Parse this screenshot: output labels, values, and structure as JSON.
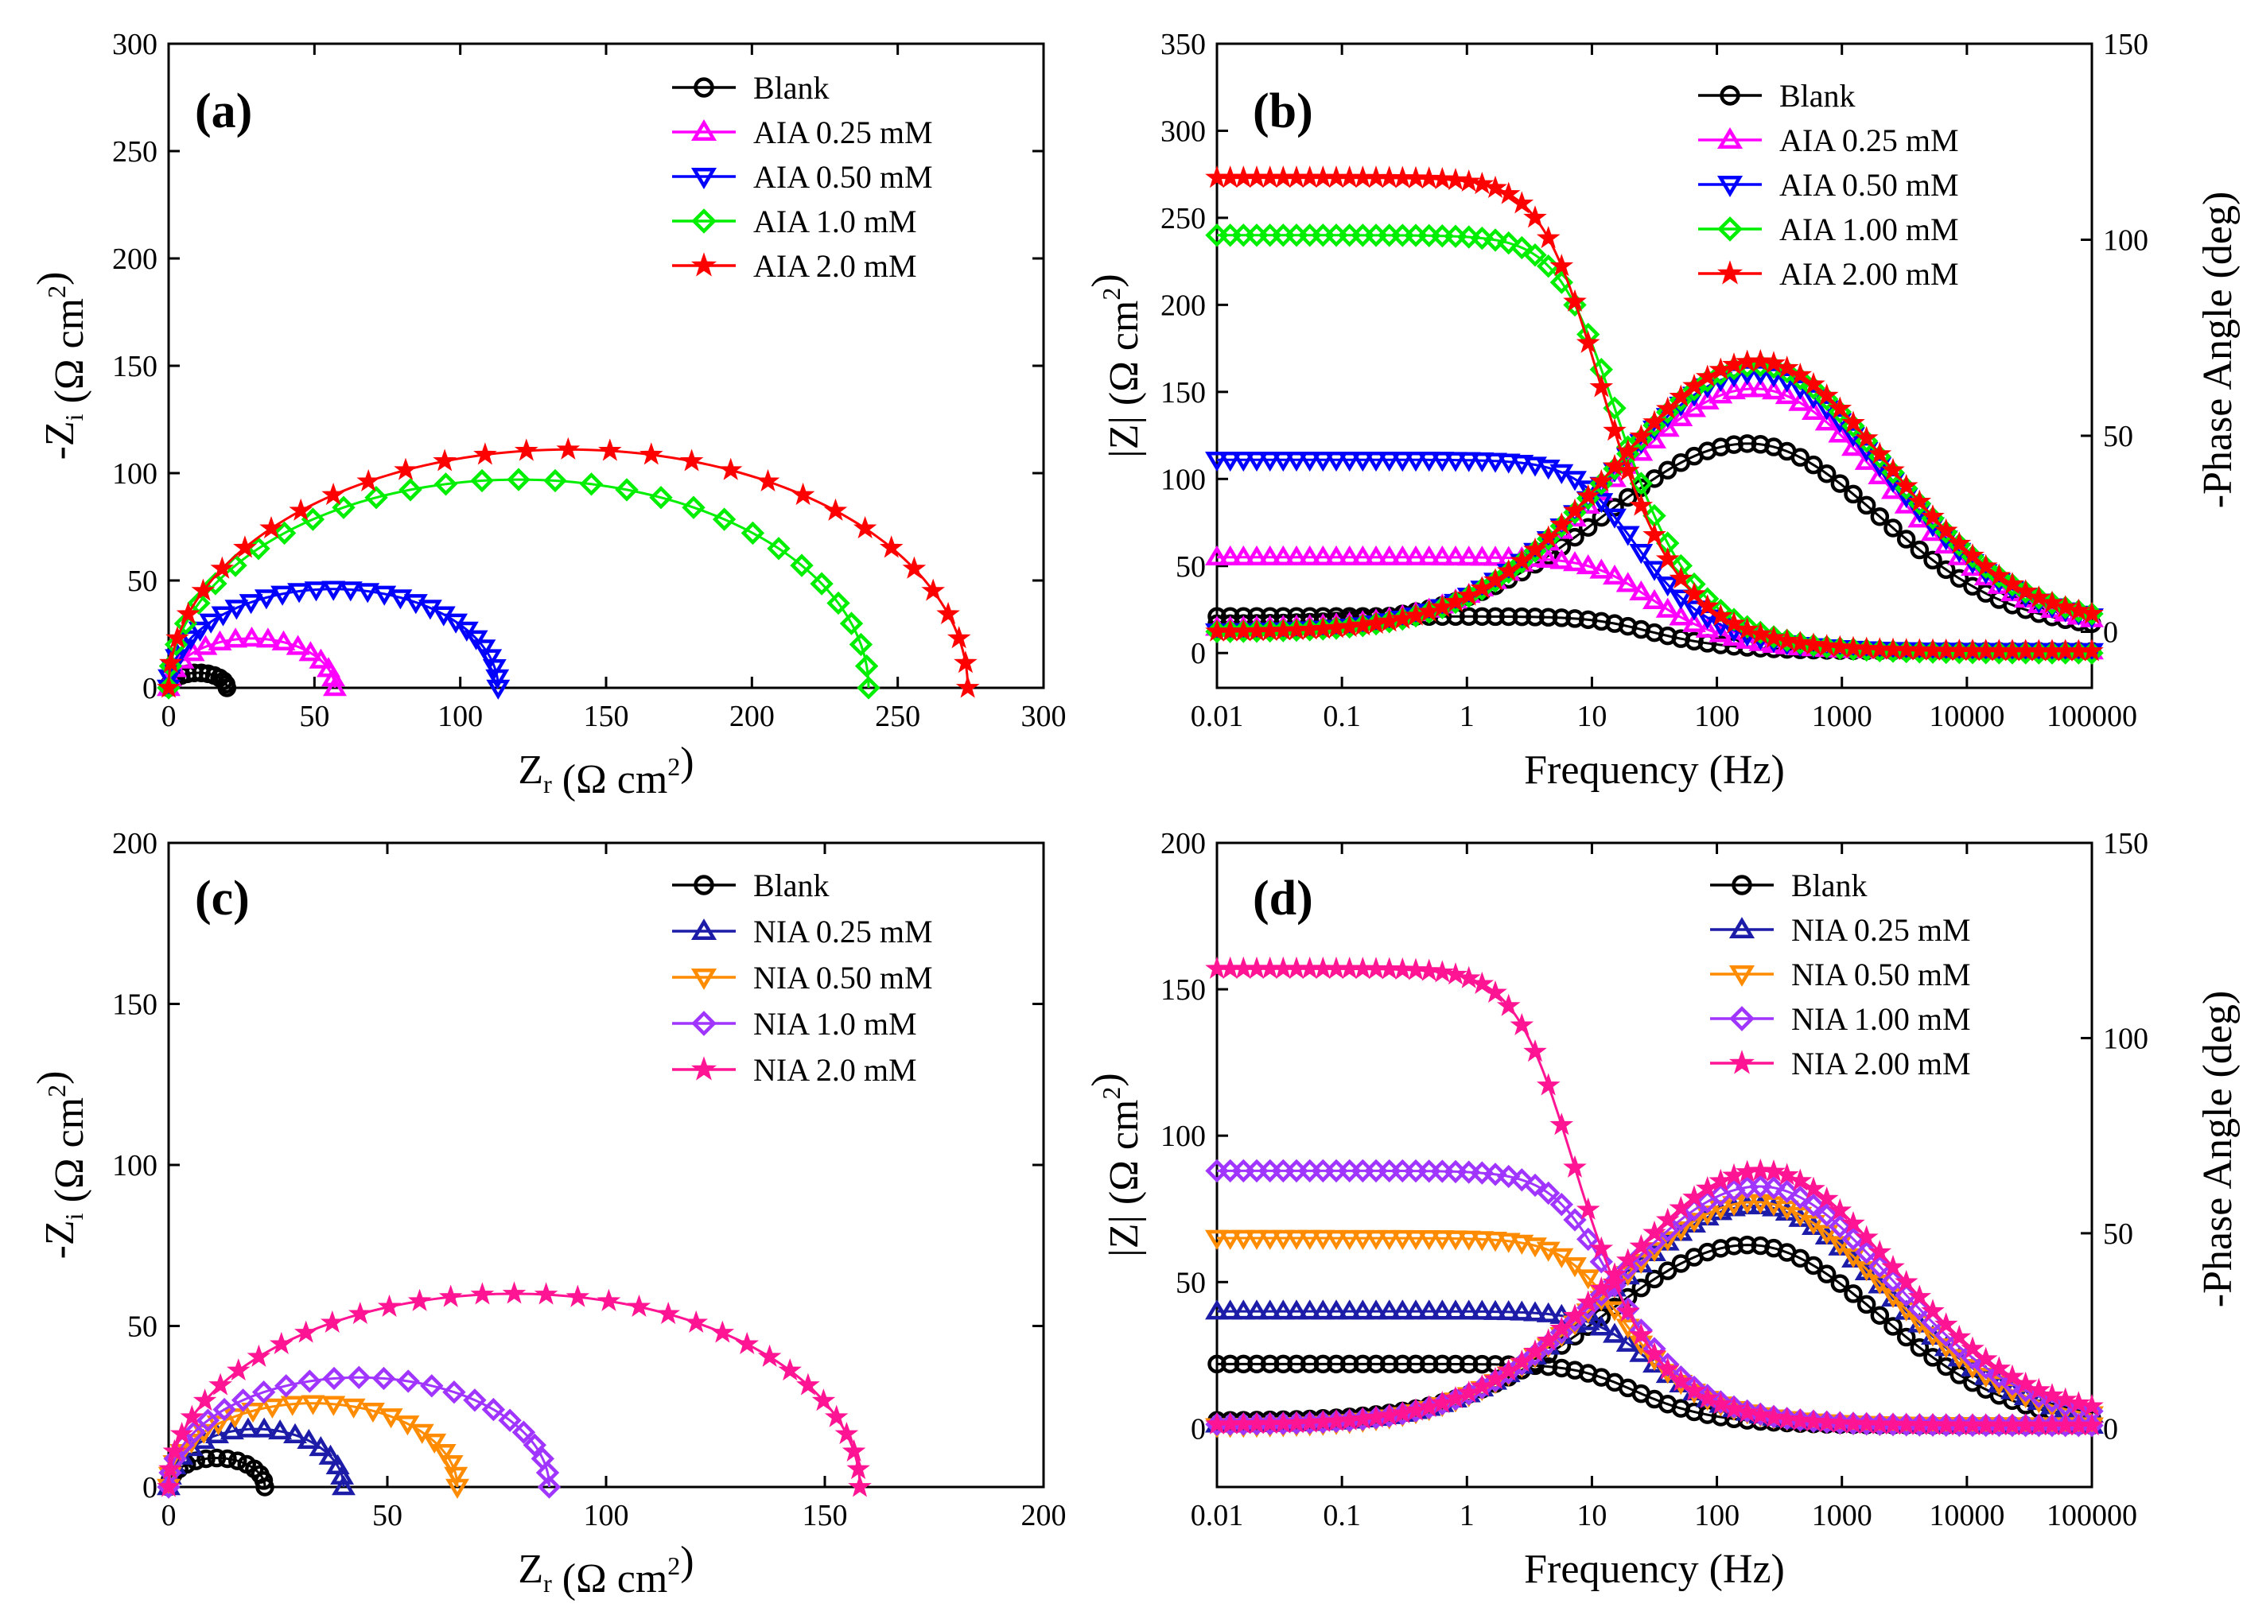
{
  "figure": {
    "panel_labels": [
      "(a)",
      "(b)",
      "(c)",
      "(d)"
    ]
  },
  "chart_data": [
    {
      "panel": "(a)",
      "type": "scatter",
      "style": "nyquist",
      "xlabel": "Z_r (Ω cm^2)",
      "ylabel": "-Z_i (Ω cm^2)",
      "xlim": [
        0,
        300
      ],
      "ylim": [
        0,
        300
      ],
      "xticks": [
        0,
        50,
        100,
        150,
        200,
        250,
        300
      ],
      "yticks": [
        0,
        50,
        100,
        150,
        200,
        250,
        300
      ],
      "legend_position": "top-right",
      "series": [
        {
          "name": "Blank",
          "marker": "circle",
          "color": "#000000",
          "rs": 0,
          "rct": 20,
          "peak": 7,
          "points": 13
        },
        {
          "name": "AIA 0.25 mM",
          "marker": "triangle-up",
          "color": "#ff00ff",
          "rs": 0,
          "rct": 57,
          "peak": 23,
          "points": 16
        },
        {
          "name": "AIA 0.50 mM",
          "marker": "triangle-down",
          "color": "#0000ff",
          "rs": 0,
          "rct": 113,
          "peak": 46,
          "points": 30
        },
        {
          "name": "AIA 1.0 mM",
          "marker": "diamond",
          "color": "#00ee00",
          "rs": 0,
          "rct": 240,
          "peak": 97,
          "points": 30
        },
        {
          "name": "AIA 2.0 mM",
          "marker": "star",
          "color": "#ff0000",
          "rs": 0,
          "rct": 274,
          "peak": 111,
          "points": 30
        }
      ]
    },
    {
      "panel": "(b)",
      "type": "scatter",
      "style": "bode",
      "xlabel": "Frequency (Hz)",
      "ylabel": "|Z| (Ω cm^2)",
      "y2label": "-Phase Angle (deg)",
      "xlim": [
        0.01,
        100000
      ],
      "ylim": [
        -20,
        350
      ],
      "y2lim": [
        -14.3,
        150
      ],
      "xticks": [
        "0.01",
        "0.1",
        "1",
        "10",
        "100",
        "1000",
        "10000",
        "100000"
      ],
      "yticks": [
        0,
        50,
        100,
        150,
        200,
        250,
        300,
        350
      ],
      "y2ticks": [
        0,
        50,
        100,
        150
      ],
      "legend_position": "top-right",
      "series": [
        {
          "name": "Blank",
          "marker": "circle",
          "color": "#000000",
          "rs": 1,
          "rct": 20,
          "fc": 20,
          "phase_max": 48,
          "phase_fmax": 180,
          "phase_low": 2,
          "phase_high": 0.5
        },
        {
          "name": "AIA 0.25 mM",
          "marker": "triangle-up",
          "color": "#ff00ff",
          "rs": 1,
          "rct": 54,
          "fc": 20,
          "phase_max": 62,
          "phase_fmax": 200,
          "phase_low": 1,
          "phase_high": 1
        },
        {
          "name": "AIA 0.50 mM",
          "marker": "triangle-down",
          "color": "#0000ff",
          "rs": 1,
          "rct": 110,
          "fc": 15,
          "phase_max": 66,
          "phase_fmax": 200,
          "phase_low": 0,
          "phase_high": 1.5
        },
        {
          "name": "AIA 1.00 mM",
          "marker": "diamond",
          "color": "#00ee00",
          "rs": 0,
          "rct": 240,
          "fc": 11,
          "phase_max": 68,
          "phase_fmax": 210,
          "phase_low": 0,
          "phase_high": 2
        },
        {
          "name": "AIA 2.00 mM",
          "marker": "star",
          "color": "#ff0000",
          "rs": 1,
          "rct": 272,
          "fc": 8,
          "phase_max": 69,
          "phase_fmax": 210,
          "phase_low": 0,
          "phase_high": 2
        }
      ]
    },
    {
      "panel": "(c)",
      "type": "scatter",
      "style": "nyquist",
      "xlabel": "Z_r (Ω cm^2)",
      "ylabel": "-Z_i (Ω cm^2)",
      "xlim": [
        0,
        200
      ],
      "ylim": [
        0,
        200
      ],
      "xticks": [
        0,
        50,
        100,
        150,
        200
      ],
      "yticks": [
        0,
        50,
        100,
        150,
        200
      ],
      "legend_position": "top-right",
      "series": [
        {
          "name": "Blank",
          "marker": "circle",
          "color": "#000000",
          "rs": 0,
          "rct": 22,
          "peak": 9,
          "points": 14
        },
        {
          "name": "NIA 0.25 mM",
          "marker": "triangle-up",
          "color": "#1c1ca8",
          "rs": 0,
          "rct": 40,
          "peak": 18,
          "points": 17
        },
        {
          "name": "NIA 0.50 mM",
          "marker": "triangle-down",
          "color": "#ff8c00",
          "rs": 0,
          "rct": 66,
          "peak": 26,
          "points": 22
        },
        {
          "name": "NIA 1.0 mM",
          "marker": "diamond",
          "color": "#9f35ff",
          "rs": 0,
          "rct": 87,
          "peak": 34,
          "points": 24
        },
        {
          "name": "NIA 2.0 mM",
          "marker": "star",
          "color": "#ff1493",
          "rs": 0,
          "rct": 158,
          "peak": 60,
          "points": 34
        }
      ]
    },
    {
      "panel": "(d)",
      "type": "scatter",
      "style": "bode",
      "xlabel": "Frequency (Hz)",
      "ylabel": "|Z| (Ω cm^2)",
      "y2label": "-Phase Angle (deg)",
      "xlim": [
        0.01,
        100000
      ],
      "ylim": [
        -20,
        200
      ],
      "y2lim": [
        -15,
        150
      ],
      "xticks": [
        "0.01",
        "0.1",
        "1",
        "10",
        "100",
        "1000",
        "10000",
        "100000"
      ],
      "yticks": [
        0,
        50,
        100,
        150,
        200
      ],
      "y2ticks": [
        0,
        50,
        100,
        150
      ],
      "legend_position": "top-right",
      "series": [
        {
          "name": "Blank",
          "marker": "circle",
          "color": "#000000",
          "rs": 1,
          "rct": 21,
          "fc": 15,
          "phase_max": 47,
          "phase_fmax": 180,
          "phase_low": 2,
          "phase_high": 1
        },
        {
          "name": "NIA 0.25 mM",
          "marker": "triangle-up",
          "color": "#1c1ca8",
          "rs": 1,
          "rct": 39,
          "fc": 20,
          "phase_max": 57,
          "phase_fmax": 200,
          "phase_low": 1,
          "phase_high": 1.5
        },
        {
          "name": "NIA 0.50 mM",
          "marker": "triangle-down",
          "color": "#ff8c00",
          "rs": 1,
          "rct": 64,
          "fc": 12,
          "phase_max": 58,
          "phase_fmax": 200,
          "phase_low": 0.5,
          "phase_high": 1.5
        },
        {
          "name": "NIA 1.00 mM",
          "marker": "diamond",
          "color": "#9f35ff",
          "rs": 1,
          "rct": 87,
          "fc": 10,
          "phase_max": 62,
          "phase_fmax": 220,
          "phase_low": 1,
          "phase_high": 2
        },
        {
          "name": "NIA 2.00 mM",
          "marker": "star",
          "color": "#ff1493",
          "rs": 1,
          "rct": 156,
          "fc": 5,
          "phase_max": 66,
          "phase_fmax": 230,
          "phase_low": 1,
          "phase_high": 3
        }
      ]
    }
  ]
}
